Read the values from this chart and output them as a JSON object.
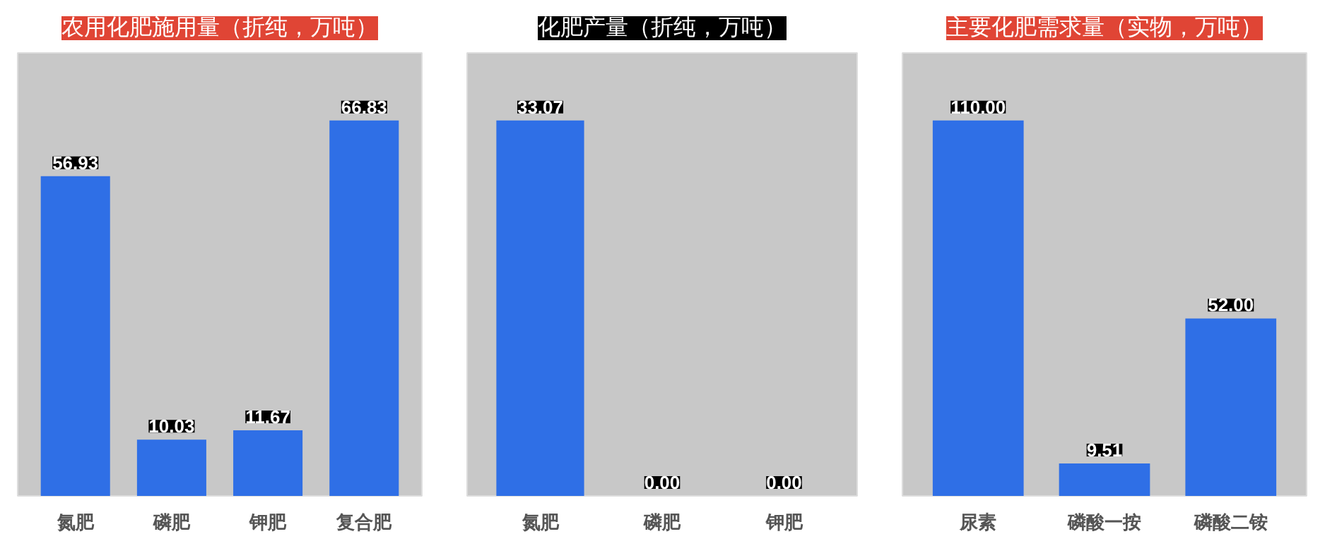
{
  "chart_data": [
    {
      "type": "bar",
      "title": "农用化肥施用量（折纯，万吨）",
      "categories": [
        "氮肥",
        "磷肥",
        "钾肥",
        "复合肥"
      ],
      "values": [
        56.93,
        10.03,
        11.67,
        66.83
      ],
      "value_labels": [
        "56.93",
        "10.03",
        "11.67",
        "66.83"
      ],
      "color": "#2f6fe6"
    },
    {
      "type": "bar",
      "title": "化肥产量（折纯，万吨）",
      "categories": [
        "氮肥",
        "磷肥",
        "钾肥"
      ],
      "values": [
        33.07,
        0.0,
        0.0
      ],
      "value_labels": [
        "33.07",
        "0.00",
        "0.00"
      ],
      "color": "#2f6fe6"
    },
    {
      "type": "bar",
      "title": "主要化肥需求量（实物，万吨）",
      "categories": [
        "尿素",
        "磷酸一按",
        "磷酸二铵"
      ],
      "values": [
        110.0,
        9.51,
        52.0
      ],
      "value_labels": [
        "110.00",
        "9.51",
        "52.00"
      ],
      "color": "#2f6fe6"
    }
  ]
}
